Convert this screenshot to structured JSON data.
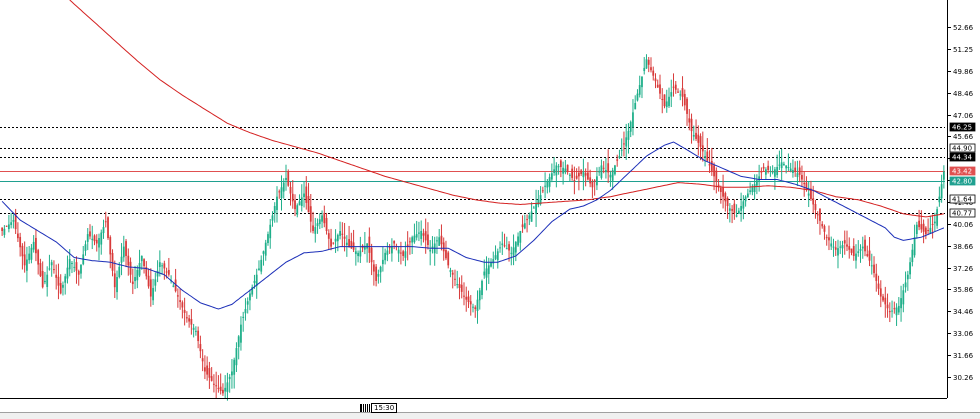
{
  "colors": {
    "background": "#ffffff",
    "bull": "#1faf8a",
    "bear": "#d83a3a",
    "ma_fast": "#1c2fb8",
    "ma_slow": "#d42020",
    "level_line": "#000000",
    "level_red": "#e05050",
    "level_teal": "#20a090"
  },
  "time_cursor": {
    "label": "15:30"
  },
  "chart_data": {
    "type": "candlestick",
    "title": "",
    "xlabel": "",
    "ylabel": "",
    "ylim": [
      28.9,
      54.4
    ],
    "y_ticks": [
      "52.66",
      "51.25",
      "49.86",
      "48.46",
      "47.06",
      "45.66",
      "44.26",
      "42.86",
      "41.46",
      "40.06",
      "38.66",
      "37.26",
      "35.86",
      "34.46",
      "33.06",
      "31.66",
      "30.26"
    ],
    "y_tick_values": [
      52.66,
      51.25,
      49.86,
      48.46,
      47.06,
      45.66,
      44.26,
      42.86,
      41.46,
      40.06,
      38.66,
      37.26,
      35.86,
      34.46,
      33.06,
      31.66,
      30.26
    ],
    "levels": [
      {
        "label": "46.25",
        "value": 46.25,
        "style": "dotted",
        "tag": "dark"
      },
      {
        "label": "44.90",
        "value": 44.9,
        "style": "dotted",
        "tag": "outline"
      },
      {
        "label": "44.34",
        "value": 44.34,
        "style": "dotted",
        "tag": "dark"
      },
      {
        "label": "43.42",
        "value": 43.42,
        "style": "solid-red",
        "tag": "red"
      },
      {
        "label": "42.80",
        "value": 42.8,
        "style": "solid-teal",
        "tag": "teal"
      },
      {
        "label": "41.64",
        "value": 41.64,
        "style": "dotted",
        "tag": "outline"
      },
      {
        "label": "40.77",
        "value": 40.77,
        "style": "dotted",
        "tag": "outline"
      }
    ],
    "anchors": [
      [
        0,
        39.6
      ],
      [
        5,
        40.3
      ],
      [
        10,
        37.4
      ],
      [
        14,
        38.9
      ],
      [
        18,
        36.0
      ],
      [
        22,
        37.6
      ],
      [
        26,
        35.6
      ],
      [
        30,
        37.8
      ],
      [
        34,
        36.8
      ],
      [
        38,
        39.4
      ],
      [
        42,
        38.8
      ],
      [
        46,
        40.2
      ],
      [
        50,
        36.0
      ],
      [
        54,
        38.6
      ],
      [
        58,
        36.2
      ],
      [
        62,
        38.0
      ],
      [
        66,
        35.4
      ],
      [
        70,
        37.6
      ],
      [
        74,
        36.8
      ],
      [
        78,
        35.4
      ],
      [
        82,
        34.0
      ],
      [
        86,
        33.2
      ],
      [
        90,
        30.6
      ],
      [
        94,
        29.8
      ],
      [
        98,
        29.2
      ],
      [
        102,
        30.6
      ],
      [
        106,
        33.6
      ],
      [
        110,
        35.6
      ],
      [
        114,
        37.2
      ],
      [
        118,
        39.4
      ],
      [
        122,
        41.8
      ],
      [
        126,
        43.0
      ],
      [
        130,
        41.0
      ],
      [
        134,
        42.0
      ],
      [
        138,
        39.6
      ],
      [
        142,
        40.6
      ],
      [
        146,
        38.6
      ],
      [
        150,
        39.6
      ],
      [
        154,
        38.6
      ],
      [
        158,
        38.2
      ],
      [
        162,
        38.8
      ],
      [
        166,
        36.4
      ],
      [
        170,
        38.2
      ],
      [
        174,
        38.8
      ],
      [
        178,
        38.0
      ],
      [
        182,
        39.2
      ],
      [
        186,
        39.6
      ],
      [
        190,
        38.4
      ],
      [
        194,
        39.2
      ],
      [
        198,
        37.4
      ],
      [
        202,
        36.2
      ],
      [
        206,
        35.2
      ],
      [
        210,
        34.6
      ],
      [
        214,
        37.0
      ],
      [
        218,
        37.8
      ],
      [
        222,
        38.8
      ],
      [
        226,
        38.2
      ],
      [
        230,
        39.6
      ],
      [
        234,
        40.6
      ],
      [
        238,
        41.6
      ],
      [
        242,
        42.8
      ],
      [
        246,
        43.8
      ],
      [
        250,
        43.6
      ],
      [
        254,
        42.8
      ],
      [
        258,
        43.4
      ],
      [
        262,
        42.4
      ],
      [
        266,
        43.8
      ],
      [
        270,
        43.2
      ],
      [
        274,
        44.4
      ],
      [
        278,
        46.0
      ],
      [
        282,
        48.4
      ],
      [
        286,
        50.6
      ],
      [
        290,
        49.2
      ],
      [
        294,
        47.6
      ],
      [
        298,
        48.8
      ],
      [
        302,
        48.2
      ],
      [
        306,
        46.0
      ],
      [
        310,
        45.0
      ],
      [
        314,
        43.8
      ],
      [
        318,
        42.4
      ],
      [
        322,
        41.2
      ],
      [
        326,
        40.6
      ],
      [
        330,
        41.8
      ],
      [
        334,
        42.6
      ],
      [
        338,
        43.6
      ],
      [
        342,
        43.4
      ],
      [
        346,
        44.0
      ],
      [
        350,
        43.6
      ],
      [
        354,
        43.2
      ],
      [
        358,
        42.0
      ],
      [
        362,
        40.6
      ],
      [
        366,
        39.2
      ],
      [
        370,
        38.4
      ],
      [
        374,
        38.8
      ],
      [
        378,
        38.0
      ],
      [
        382,
        38.6
      ],
      [
        386,
        37.4
      ],
      [
        390,
        35.4
      ],
      [
        394,
        34.4
      ],
      [
        398,
        34.8
      ],
      [
        402,
        36.8
      ],
      [
        406,
        40.0
      ],
      [
        410,
        39.4
      ],
      [
        414,
        40.2
      ],
      [
        418,
        43.4
      ]
    ],
    "ma_fast_keys": [
      [
        0,
        41.5
      ],
      [
        8,
        40.3
      ],
      [
        16,
        39.6
      ],
      [
        24,
        38.9
      ],
      [
        32,
        37.9
      ],
      [
        40,
        37.7
      ],
      [
        48,
        37.6
      ],
      [
        56,
        37.3
      ],
      [
        64,
        37.2
      ],
      [
        72,
        36.8
      ],
      [
        80,
        35.8
      ],
      [
        88,
        35.0
      ],
      [
        96,
        34.6
      ],
      [
        102,
        34.9
      ],
      [
        110,
        35.8
      ],
      [
        118,
        36.7
      ],
      [
        126,
        37.6
      ],
      [
        134,
        38.2
      ],
      [
        142,
        38.3
      ],
      [
        150,
        38.6
      ],
      [
        158,
        38.6
      ],
      [
        166,
        38.6
      ],
      [
        174,
        38.6
      ],
      [
        182,
        38.6
      ],
      [
        190,
        38.5
      ],
      [
        198,
        38.5
      ],
      [
        206,
        37.9
      ],
      [
        214,
        37.6
      ],
      [
        220,
        37.6
      ],
      [
        228,
        38.0
      ],
      [
        236,
        39.0
      ],
      [
        244,
        40.2
      ],
      [
        252,
        41.0
      ],
      [
        258,
        41.2
      ],
      [
        264,
        41.6
      ],
      [
        270,
        42.2
      ],
      [
        278,
        43.3
      ],
      [
        286,
        44.4
      ],
      [
        294,
        45.1
      ],
      [
        298,
        45.3
      ],
      [
        304,
        44.8
      ],
      [
        312,
        44.1
      ],
      [
        320,
        43.6
      ],
      [
        328,
        43.1
      ],
      [
        336,
        42.9
      ],
      [
        344,
        42.9
      ],
      [
        352,
        42.6
      ],
      [
        360,
        42.2
      ],
      [
        368,
        41.6
      ],
      [
        376,
        41.0
      ],
      [
        384,
        40.4
      ],
      [
        392,
        39.8
      ],
      [
        396,
        39.2
      ],
      [
        400,
        39.0
      ],
      [
        408,
        39.2
      ],
      [
        418,
        39.8
      ]
    ],
    "ma_slow_keys": [
      [
        30,
        54.4
      ],
      [
        40,
        53.1
      ],
      [
        50,
        51.8
      ],
      [
        60,
        50.5
      ],
      [
        70,
        49.3
      ],
      [
        80,
        48.3
      ],
      [
        90,
        47.4
      ],
      [
        100,
        46.5
      ],
      [
        110,
        45.9
      ],
      [
        120,
        45.4
      ],
      [
        130,
        45.0
      ],
      [
        140,
        44.6
      ],
      [
        150,
        44.1
      ],
      [
        160,
        43.6
      ],
      [
        170,
        43.1
      ],
      [
        180,
        42.7
      ],
      [
        190,
        42.3
      ],
      [
        200,
        41.9
      ],
      [
        210,
        41.6
      ],
      [
        220,
        41.4
      ],
      [
        230,
        41.3
      ],
      [
        240,
        41.4
      ],
      [
        250,
        41.5
      ],
      [
        260,
        41.6
      ],
      [
        270,
        41.8
      ],
      [
        280,
        42.1
      ],
      [
        290,
        42.4
      ],
      [
        300,
        42.7
      ],
      [
        310,
        42.6
      ],
      [
        320,
        42.4
      ],
      [
        330,
        42.4
      ],
      [
        340,
        42.5
      ],
      [
        350,
        42.4
      ],
      [
        360,
        42.2
      ],
      [
        370,
        41.8
      ],
      [
        380,
        41.6
      ],
      [
        390,
        41.2
      ],
      [
        400,
        40.7
      ],
      [
        410,
        40.5
      ],
      [
        418,
        40.7
      ]
    ]
  }
}
